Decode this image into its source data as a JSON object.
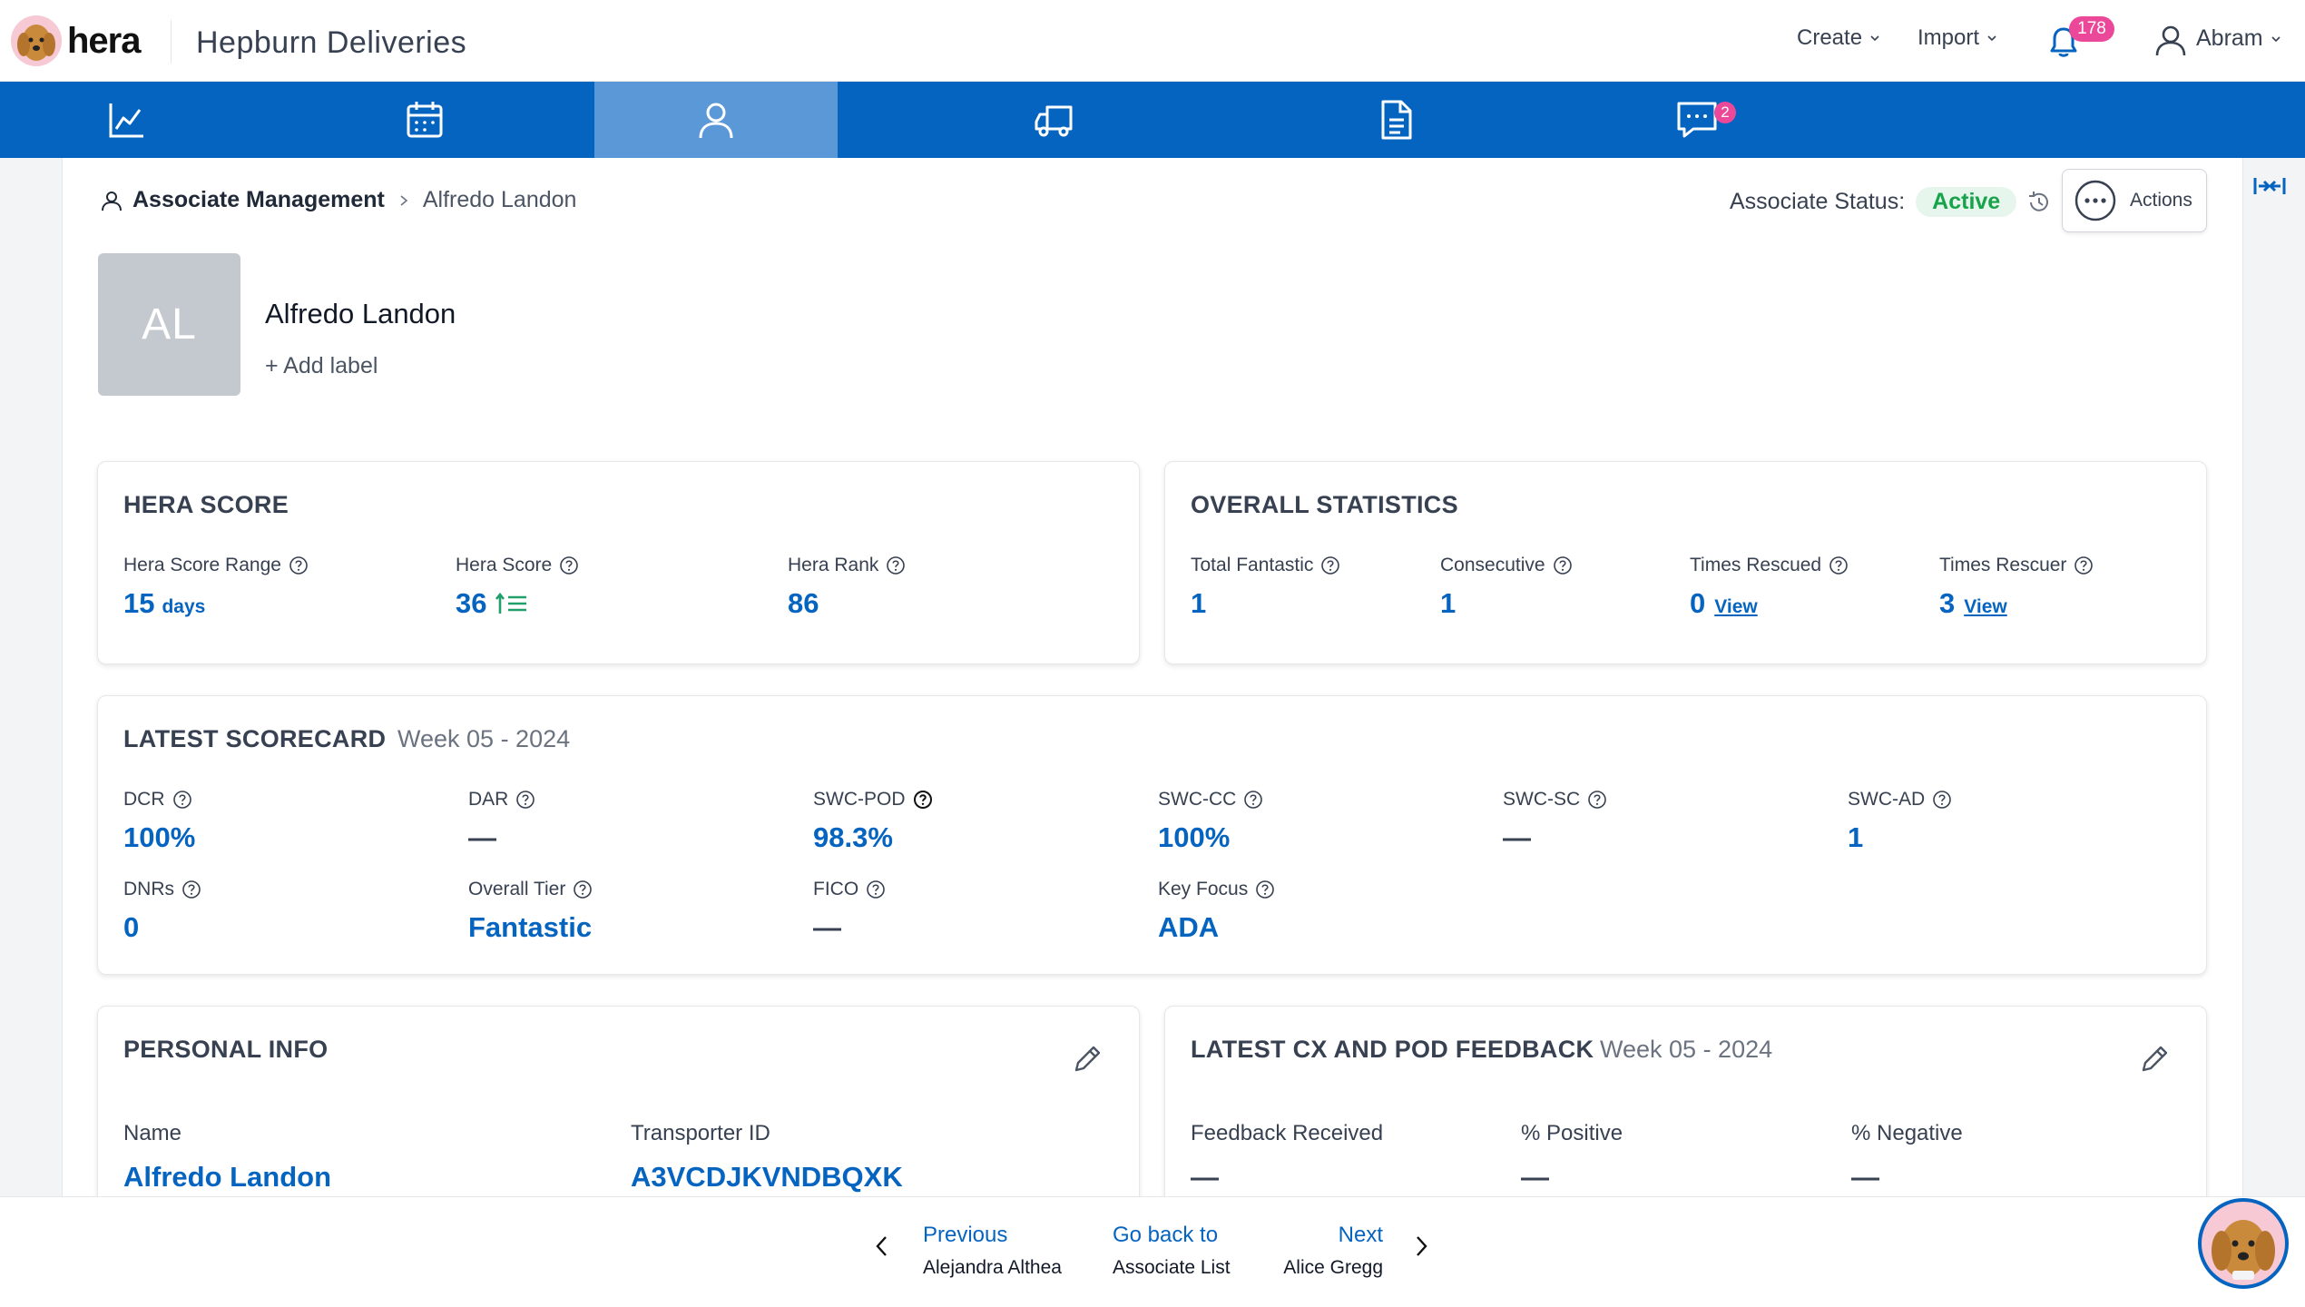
{
  "header": {
    "logo_text": "hera",
    "company": "Hepburn Deliveries",
    "create_label": "Create",
    "import_label": "Import",
    "notification_count": "178",
    "user_name": "Abram"
  },
  "nav": {
    "active_tab": "associates",
    "tabs": [
      {
        "icon": "chart-icon"
      },
      {
        "icon": "calendar-icon"
      },
      {
        "icon": "user-icon"
      },
      {
        "icon": "truck-icon"
      },
      {
        "icon": "document-icon"
      },
      {
        "icon": "chat-icon",
        "badge": "2"
      }
    ],
    "chat_badge": "2"
  },
  "breadcrumb": {
    "root": "Associate Management",
    "current": "Alfredo Landon"
  },
  "status": {
    "label": "Associate Status:",
    "value": "Active"
  },
  "actions_label": "Actions",
  "associate": {
    "initials": "AL",
    "name": "Alfredo Landon",
    "add_label": "+ Add label"
  },
  "hera_score": {
    "title": "HERA SCORE",
    "range_label": "Hera Score Range",
    "range_value": "15",
    "range_unit": "days",
    "score_label": "Hera Score",
    "score_value": "36",
    "rank_label": "Hera Rank",
    "rank_value": "86"
  },
  "overall_stats": {
    "title": "OVERALL STATISTICS",
    "total_fantastic_label": "Total Fantastic",
    "total_fantastic_value": "1",
    "consecutive_label": "Consecutive",
    "consecutive_value": "1",
    "times_rescued_label": "Times Rescued",
    "times_rescued_value": "0",
    "times_rescuer_label": "Times Rescuer",
    "times_rescuer_value": "3",
    "view_label": "View"
  },
  "scorecard": {
    "title": "LATEST SCORECARD",
    "week": "Week 05 - 2024",
    "dcr_label": "DCR",
    "dcr_value": "100%",
    "dar_label": "DAR",
    "dar_value": "—",
    "swc_pod_label": "SWC-POD",
    "swc_pod_value": "98.3%",
    "swc_cc_label": "SWC-CC",
    "swc_cc_value": "100%",
    "swc_sc_label": "SWC-SC",
    "swc_sc_value": "—",
    "swc_ad_label": "SWC-AD",
    "swc_ad_value": "1",
    "dnrs_label": "DNRs",
    "dnrs_value": "0",
    "tier_label": "Overall Tier",
    "tier_value": "Fantastic",
    "fico_label": "FICO",
    "fico_value": "—",
    "key_focus_label": "Key Focus",
    "key_focus_value": "ADA"
  },
  "personal_info": {
    "title": "PERSONAL INFO",
    "name_label": "Name",
    "name_value": "Alfredo Landon",
    "transporter_label": "Transporter ID",
    "transporter_value": "A3VCDJKVNDBQXK"
  },
  "feedback": {
    "title": "LATEST CX AND POD FEEDBACK",
    "week": "Week 05 - 2024",
    "received_label": "Feedback Received",
    "received_value": "—",
    "positive_label": "% Positive",
    "positive_value": "—",
    "negative_label": "% Negative",
    "negative_value": "—"
  },
  "footer": {
    "previous_label": "Previous",
    "previous_name": "Alejandra Althea",
    "back_label": "Go back to",
    "back_target": "Associate List",
    "next_label": "Next",
    "next_name": "Alice Gregg"
  },
  "colors": {
    "nav_blue": "#0664c1",
    "nav_active": "#5a98d8",
    "badge_pink": "#ec4899",
    "status_green": "#16a34a",
    "value_blue": "#0664c1"
  }
}
